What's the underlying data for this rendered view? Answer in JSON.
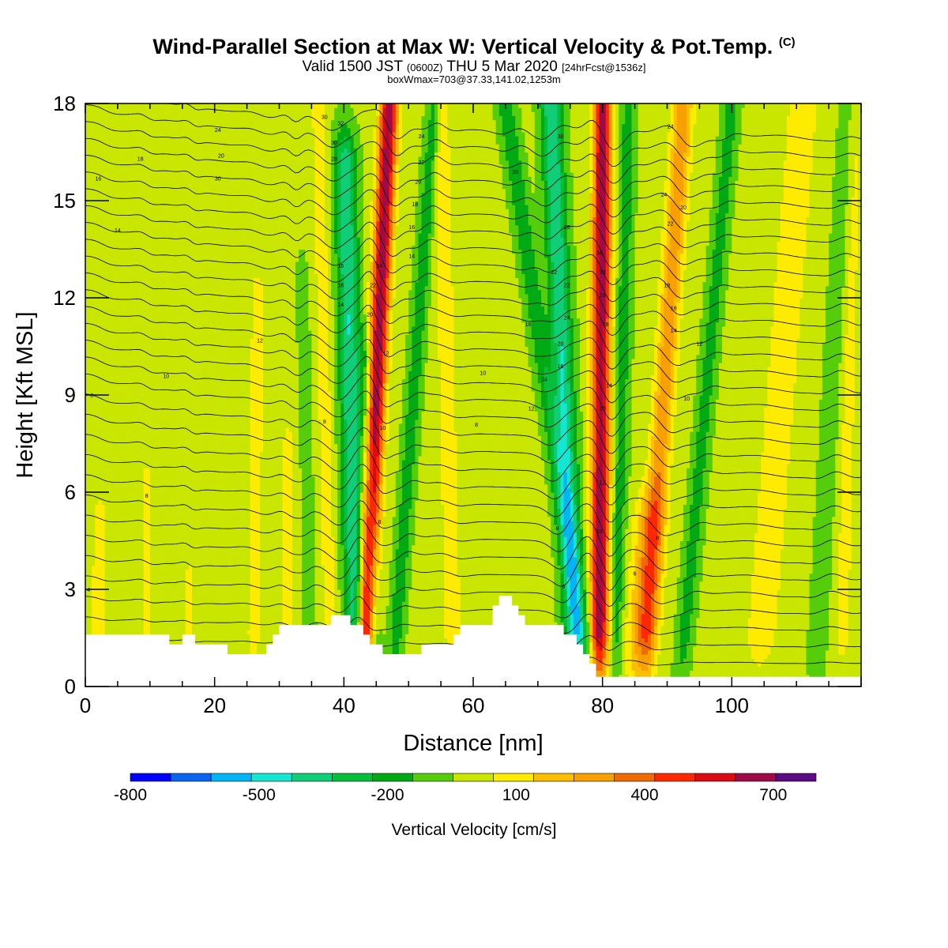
{
  "title": {
    "main": "Wind-Parallel Section at Max W: Vertical Velocity & Pot.Temp.",
    "copyright": "(C)",
    "valid_prefix": "Valid 1500 JST",
    "zulu": "(0600Z)",
    "valid_suffix": "THU 5 Mar 2020",
    "forecast": "[24hrFcst@1536z]",
    "box_info": "boxWmax=703@37.33,141.02,1253m"
  },
  "chart_data": {
    "type": "heatmap",
    "xlabel": "Distance [nm]",
    "ylabel": "Height [Kft MSL]",
    "xlim": [
      0,
      120
    ],
    "ylim": [
      0,
      18
    ],
    "xticks": [
      0,
      20,
      40,
      60,
      80,
      100
    ],
    "yticks": [
      0,
      3,
      6,
      9,
      12,
      15,
      18
    ],
    "colorbar": {
      "label": "Vertical Velocity [cm/s]",
      "tick_labels": [
        "-800",
        "-500",
        "-200",
        "100",
        "400",
        "700"
      ],
      "tick_values": [
        -800,
        -500,
        -200,
        100,
        400,
        700
      ],
      "bins": [
        -800,
        -700,
        -600,
        -500,
        -400,
        -300,
        -200,
        -100,
        0,
        100,
        200,
        300,
        400,
        500,
        600,
        700,
        800
      ],
      "colors": [
        "#0000ff",
        "#0a64f0",
        "#00b4f5",
        "#14e6d2",
        "#10cd78",
        "#05be3c",
        "#00aa14",
        "#55cd0a",
        "#c8e600",
        "#ffeb00",
        "#fcbe00",
        "#f8a000",
        "#f06a00",
        "#ff2800",
        "#dc0a14",
        "#a00a46",
        "#5a0a82"
      ]
    },
    "background_velocity": 20,
    "terrain_kft": [
      [
        0,
        1.6
      ],
      [
        13,
        1.6
      ],
      [
        13,
        1.3
      ],
      [
        15,
        1.3
      ],
      [
        15,
        1.6
      ],
      [
        17,
        1.6
      ],
      [
        17,
        1.3
      ],
      [
        22,
        1.3
      ],
      [
        22,
        1.0
      ],
      [
        28,
        1.0
      ],
      [
        28,
        1.3
      ],
      [
        29,
        1.3
      ],
      [
        29,
        1.6
      ],
      [
        30,
        1.6
      ],
      [
        30,
        1.9
      ],
      [
        38,
        1.9
      ],
      [
        38,
        2.2
      ],
      [
        41,
        2.2
      ],
      [
        41,
        1.9
      ],
      [
        43,
        1.9
      ],
      [
        43,
        1.6
      ],
      [
        44,
        1.6
      ],
      [
        44,
        1.3
      ],
      [
        46,
        1.3
      ],
      [
        46,
        1.0
      ],
      [
        52,
        1.0
      ],
      [
        52,
        1.3
      ],
      [
        57,
        1.3
      ],
      [
        57,
        1.6
      ],
      [
        58,
        1.6
      ],
      [
        58,
        1.9
      ],
      [
        63,
        1.9
      ],
      [
        63,
        2.5
      ],
      [
        64,
        2.5
      ],
      [
        64,
        2.8
      ],
      [
        66,
        2.8
      ],
      [
        66,
        2.5
      ],
      [
        67,
        2.5
      ],
      [
        67,
        2.2
      ],
      [
        68,
        2.2
      ],
      [
        68,
        1.9
      ],
      [
        74,
        1.9
      ],
      [
        74,
        1.6
      ],
      [
        76,
        1.6
      ],
      [
        76,
        1.3
      ],
      [
        77,
        1.3
      ],
      [
        77,
        1.0
      ],
      [
        78,
        1.0
      ],
      [
        78,
        0.7
      ],
      [
        79,
        0.7
      ],
      [
        79,
        0.3
      ],
      [
        120,
        0.3
      ]
    ],
    "velocity_features": [
      {
        "x_bottom": 43.0,
        "x_top": 47.0,
        "height": 18,
        "peak": 750,
        "width": 1.4
      },
      {
        "x_bottom": 42.0,
        "x_top": 40.0,
        "height": 16,
        "peak": -420,
        "width": 1.6
      },
      {
        "x_bottom": 47.5,
        "x_top": 54.0,
        "height": 18,
        "peak": -200,
        "width": 1.1
      },
      {
        "x_bottom": 45.0,
        "x_top": 42.0,
        "height": 10,
        "peak": -180,
        "width": 1.0
      },
      {
        "x_bottom": 79.5,
        "x_top": 80.0,
        "height": 18,
        "peak": 750,
        "width": 1.4
      },
      {
        "x_bottom": 76.0,
        "x_top": 72.0,
        "height": 18,
        "peak": -420,
        "width": 1.6
      },
      {
        "x_bottom": 78.0,
        "x_top": 65.0,
        "height": 18,
        "peak": -200,
        "width": 1.4
      },
      {
        "x_bottom": 82.0,
        "x_top": 84.0,
        "height": 18,
        "peak": -180,
        "width": 1.1
      },
      {
        "x_bottom": 86.5,
        "x_top": 92.5,
        "height": 18,
        "peak": 350,
        "width": 1.6
      },
      {
        "x_bottom": 85.0,
        "x_top": 92.0,
        "height": 5,
        "peak": 250,
        "width": 2.2
      },
      {
        "x_bottom": 92.0,
        "x_top": 100.0,
        "height": 18,
        "peak": -180,
        "width": 1.2
      },
      {
        "x_bottom": 57.0,
        "x_top": 55.0,
        "height": 18,
        "peak": 140,
        "width": 1.5
      },
      {
        "x_bottom": 38.0,
        "x_top": 36.0,
        "height": 18,
        "peak": 130,
        "width": 1.2
      },
      {
        "x_bottom": 35.0,
        "x_top": 33.0,
        "height": 12,
        "peak": -120,
        "width": 0.8
      },
      {
        "x_bottom": 31.0,
        "x_top": 32.0,
        "height": 7,
        "peak": 160,
        "width": 1.0
      },
      {
        "x_bottom": 26.0,
        "x_top": 27.0,
        "height": 12,
        "peak": 110,
        "width": 1.5
      },
      {
        "x_bottom": 9.5,
        "x_top": 9.5,
        "height": 6,
        "peak": 120,
        "width": 1.0
      },
      {
        "x_bottom": 16.0,
        "x_top": 16.5,
        "height": 3,
        "peak": 130,
        "width": 0.8
      },
      {
        "x_bottom": 2.0,
        "x_top": 3.0,
        "height": 5,
        "peak": 120,
        "width": 1.5
      },
      {
        "x_bottom": 104.0,
        "x_top": 111.0,
        "height": 18,
        "peak": 130,
        "width": 3.0
      },
      {
        "x_bottom": 113.0,
        "x_top": 118.0,
        "height": 18,
        "peak": -120,
        "width": 1.3
      },
      {
        "x_bottom": 117.0,
        "x_top": 119.0,
        "height": 18,
        "peak": 110,
        "width": 1.5
      }
    ],
    "theta_contours": {
      "min": 4,
      "max": 36,
      "interval": 1,
      "labels": [
        {
          "x": 0.5,
          "y": 3.0,
          "text": "4"
        },
        {
          "x": 1.0,
          "y": 9.0,
          "text": "8"
        },
        {
          "x": 9.5,
          "y": 5.9,
          "text": "8"
        },
        {
          "x": 37.0,
          "y": 8.2,
          "text": "8"
        },
        {
          "x": 12.5,
          "y": 9.6,
          "text": "10"
        },
        {
          "x": 27.0,
          "y": 10.7,
          "text": "12"
        },
        {
          "x": 5.0,
          "y": 14.1,
          "text": "14"
        },
        {
          "x": 2.0,
          "y": 15.7,
          "text": "16"
        },
        {
          "x": 8.5,
          "y": 16.3,
          "text": "18"
        },
        {
          "x": 21.0,
          "y": 16.4,
          "text": "20"
        },
        {
          "x": 20.5,
          "y": 17.2,
          "text": "24"
        },
        {
          "x": 20.5,
          "y": 15.7,
          "text": "30"
        },
        {
          "x": 37.0,
          "y": 17.6,
          "text": "30"
        },
        {
          "x": 39.5,
          "y": 17.4,
          "text": "32"
        },
        {
          "x": 38.5,
          "y": 16.8,
          "text": "30"
        },
        {
          "x": 38.5,
          "y": 16.3,
          "text": "28"
        },
        {
          "x": 39.5,
          "y": 13.0,
          "text": "16"
        },
        {
          "x": 39.5,
          "y": 12.4,
          "text": "16"
        },
        {
          "x": 39.5,
          "y": 11.8,
          "text": "14"
        },
        {
          "x": 45.5,
          "y": 13.0,
          "text": "24"
        },
        {
          "x": 44.5,
          "y": 12.4,
          "text": "22"
        },
        {
          "x": 44.0,
          "y": 11.5,
          "text": "20"
        },
        {
          "x": 46.5,
          "y": 10.3,
          "text": "12"
        },
        {
          "x": 46.0,
          "y": 8.0,
          "text": "10"
        },
        {
          "x": 45.5,
          "y": 5.1,
          "text": "8"
        },
        {
          "x": 52.0,
          "y": 17.0,
          "text": "24"
        },
        {
          "x": 52.0,
          "y": 16.2,
          "text": "22"
        },
        {
          "x": 51.5,
          "y": 15.6,
          "text": "20"
        },
        {
          "x": 51.0,
          "y": 14.9,
          "text": "18"
        },
        {
          "x": 50.5,
          "y": 14.2,
          "text": "16"
        },
        {
          "x": 50.5,
          "y": 13.3,
          "text": "14"
        },
        {
          "x": 61.5,
          "y": 9.7,
          "text": "10"
        },
        {
          "x": 60.5,
          "y": 8.1,
          "text": "8"
        },
        {
          "x": 66.5,
          "y": 15.9,
          "text": "20"
        },
        {
          "x": 68.5,
          "y": 11.2,
          "text": "16"
        },
        {
          "x": 71.0,
          "y": 9.5,
          "text": "14"
        },
        {
          "x": 69.0,
          "y": 8.6,
          "text": "12"
        },
        {
          "x": 73.5,
          "y": 17.0,
          "text": "30"
        },
        {
          "x": 74.5,
          "y": 14.2,
          "text": "28"
        },
        {
          "x": 72.5,
          "y": 12.8,
          "text": "22"
        },
        {
          "x": 74.5,
          "y": 12.4,
          "text": "22"
        },
        {
          "x": 74.5,
          "y": 11.4,
          "text": "24"
        },
        {
          "x": 73.5,
          "y": 10.6,
          "text": "20"
        },
        {
          "x": 73.5,
          "y": 9.9,
          "text": "16"
        },
        {
          "x": 73.0,
          "y": 4.9,
          "text": "8"
        },
        {
          "x": 74.0,
          "y": 3.1,
          "text": "6"
        },
        {
          "x": 79.5,
          "y": 13.4,
          "text": "34"
        },
        {
          "x": 80.0,
          "y": 12.8,
          "text": "32"
        },
        {
          "x": 80.0,
          "y": 12.1,
          "text": "20"
        },
        {
          "x": 80.5,
          "y": 11.2,
          "text": "18"
        },
        {
          "x": 81.0,
          "y": 9.3,
          "text": "14"
        },
        {
          "x": 80.0,
          "y": 8.6,
          "text": "10"
        },
        {
          "x": 80.0,
          "y": 6.3,
          "text": "12"
        },
        {
          "x": 79.5,
          "y": 4.8,
          "text": "10"
        },
        {
          "x": 85.0,
          "y": 3.5,
          "text": "6"
        },
        {
          "x": 88.5,
          "y": 4.6,
          "text": "8"
        },
        {
          "x": 90.5,
          "y": 17.3,
          "text": "24"
        },
        {
          "x": 89.5,
          "y": 15.2,
          "text": "24"
        },
        {
          "x": 92.5,
          "y": 14.8,
          "text": "20"
        },
        {
          "x": 90.5,
          "y": 14.3,
          "text": "22"
        },
        {
          "x": 90.0,
          "y": 12.4,
          "text": "18"
        },
        {
          "x": 91.0,
          "y": 11.7,
          "text": "16"
        },
        {
          "x": 91.0,
          "y": 11.0,
          "text": "14"
        },
        {
          "x": 95.0,
          "y": 10.6,
          "text": "12"
        },
        {
          "x": 93.0,
          "y": 8.9,
          "text": "10"
        }
      ]
    },
    "grid": false
  }
}
